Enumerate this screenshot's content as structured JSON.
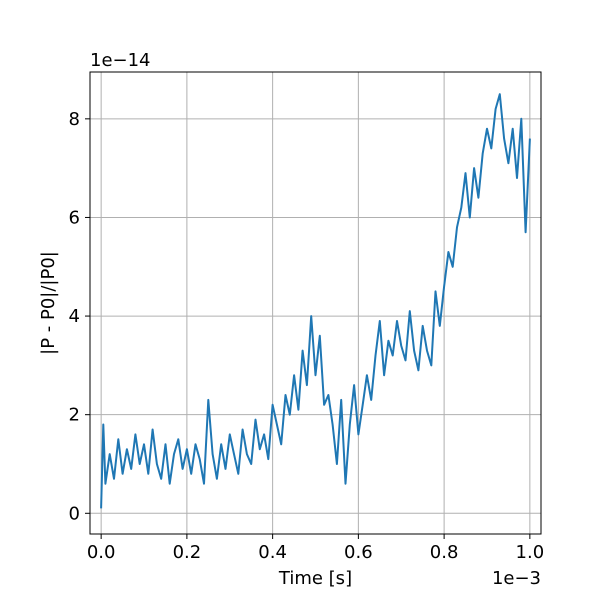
{
  "chart_data": {
    "type": "line",
    "title": "",
    "xlabel": "Time [s]",
    "ylabel": "|P - P0|/|P0|",
    "x_offset_label": "1e−3",
    "y_offset_label": "1e−14",
    "xlim": [
      -0.026,
      1.026
    ],
    "ylim": [
      -0.42,
      8.95
    ],
    "xticks": [
      0.0,
      0.2,
      0.4,
      0.6,
      0.8,
      1.0
    ],
    "xtick_labels": [
      "0.0",
      "0.2",
      "0.4",
      "0.6",
      "0.8",
      "1.0"
    ],
    "yticks": [
      0,
      2,
      4,
      6,
      8
    ],
    "ytick_labels": [
      "0",
      "2",
      "4",
      "6",
      "8"
    ],
    "grid": true,
    "legend": "none",
    "series": [
      {
        "color": "#1f77b4",
        "x": [
          0.0,
          0.005,
          0.01,
          0.02,
          0.03,
          0.04,
          0.05,
          0.06,
          0.07,
          0.08,
          0.09,
          0.1,
          0.11,
          0.12,
          0.13,
          0.14,
          0.15,
          0.16,
          0.17,
          0.18,
          0.19,
          0.2,
          0.21,
          0.22,
          0.23,
          0.24,
          0.25,
          0.26,
          0.27,
          0.28,
          0.29,
          0.3,
          0.31,
          0.32,
          0.33,
          0.34,
          0.35,
          0.36,
          0.37,
          0.38,
          0.39,
          0.4,
          0.41,
          0.42,
          0.43,
          0.44,
          0.45,
          0.46,
          0.47,
          0.48,
          0.49,
          0.5,
          0.51,
          0.52,
          0.53,
          0.54,
          0.55,
          0.56,
          0.57,
          0.58,
          0.59,
          0.6,
          0.61,
          0.62,
          0.63,
          0.64,
          0.65,
          0.66,
          0.67,
          0.68,
          0.69,
          0.7,
          0.71,
          0.72,
          0.73,
          0.74,
          0.75,
          0.76,
          0.77,
          0.78,
          0.79,
          0.8,
          0.81,
          0.82,
          0.83,
          0.84,
          0.85,
          0.86,
          0.87,
          0.88,
          0.89,
          0.9,
          0.91,
          0.92,
          0.93,
          0.94,
          0.95,
          0.96,
          0.97,
          0.98,
          0.99,
          1.0
        ],
        "y": [
          0.1,
          1.8,
          0.6,
          1.2,
          0.7,
          1.5,
          0.8,
          1.3,
          0.9,
          1.6,
          1.0,
          1.4,
          0.8,
          1.7,
          1.0,
          0.7,
          1.4,
          0.6,
          1.2,
          1.5,
          0.9,
          1.3,
          0.8,
          1.4,
          1.1,
          0.6,
          2.3,
          1.2,
          0.7,
          1.4,
          0.9,
          1.6,
          1.2,
          0.8,
          1.7,
          1.2,
          1.0,
          1.9,
          1.3,
          1.6,
          1.1,
          2.2,
          1.8,
          1.4,
          2.4,
          2.0,
          2.8,
          2.1,
          3.3,
          2.6,
          4.0,
          2.8,
          3.6,
          2.2,
          2.4,
          1.8,
          1.0,
          2.3,
          0.6,
          1.8,
          2.6,
          1.6,
          2.2,
          2.8,
          2.3,
          3.2,
          3.9,
          2.8,
          3.5,
          3.2,
          3.9,
          3.4,
          3.1,
          4.1,
          3.3,
          2.9,
          3.8,
          3.3,
          3.0,
          4.5,
          3.8,
          4.6,
          5.3,
          5.0,
          5.8,
          6.2,
          6.9,
          6.0,
          7.0,
          6.4,
          7.3,
          7.8,
          7.4,
          8.2,
          8.5,
          7.6,
          7.1,
          7.8,
          6.8,
          8.0,
          5.7,
          7.6
        ]
      }
    ]
  }
}
